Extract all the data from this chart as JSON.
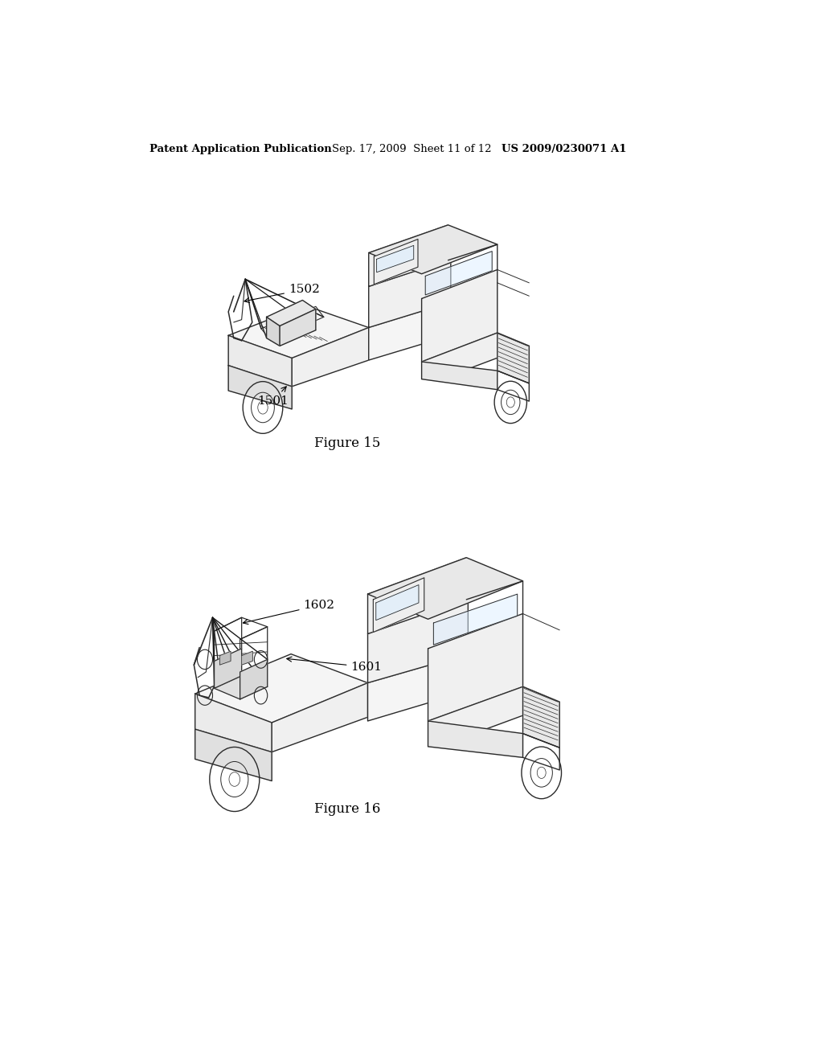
{
  "bg_color": "#ffffff",
  "header_left": "Patent Application Publication",
  "header_center": "Sep. 17, 2009  Sheet 11 of 12",
  "header_right": "US 2009/0230071 A1",
  "fig15_caption": "Figure 15",
  "fig16_caption": "Figure 16",
  "label_1501": "1501",
  "label_1502": "1502",
  "label_1601": "1601",
  "label_1602": "1602",
  "header_fontsize": 9.5,
  "caption_fontsize": 12,
  "label_fontsize": 11,
  "line_color": "#2a2a2a",
  "line_width": 1.0
}
